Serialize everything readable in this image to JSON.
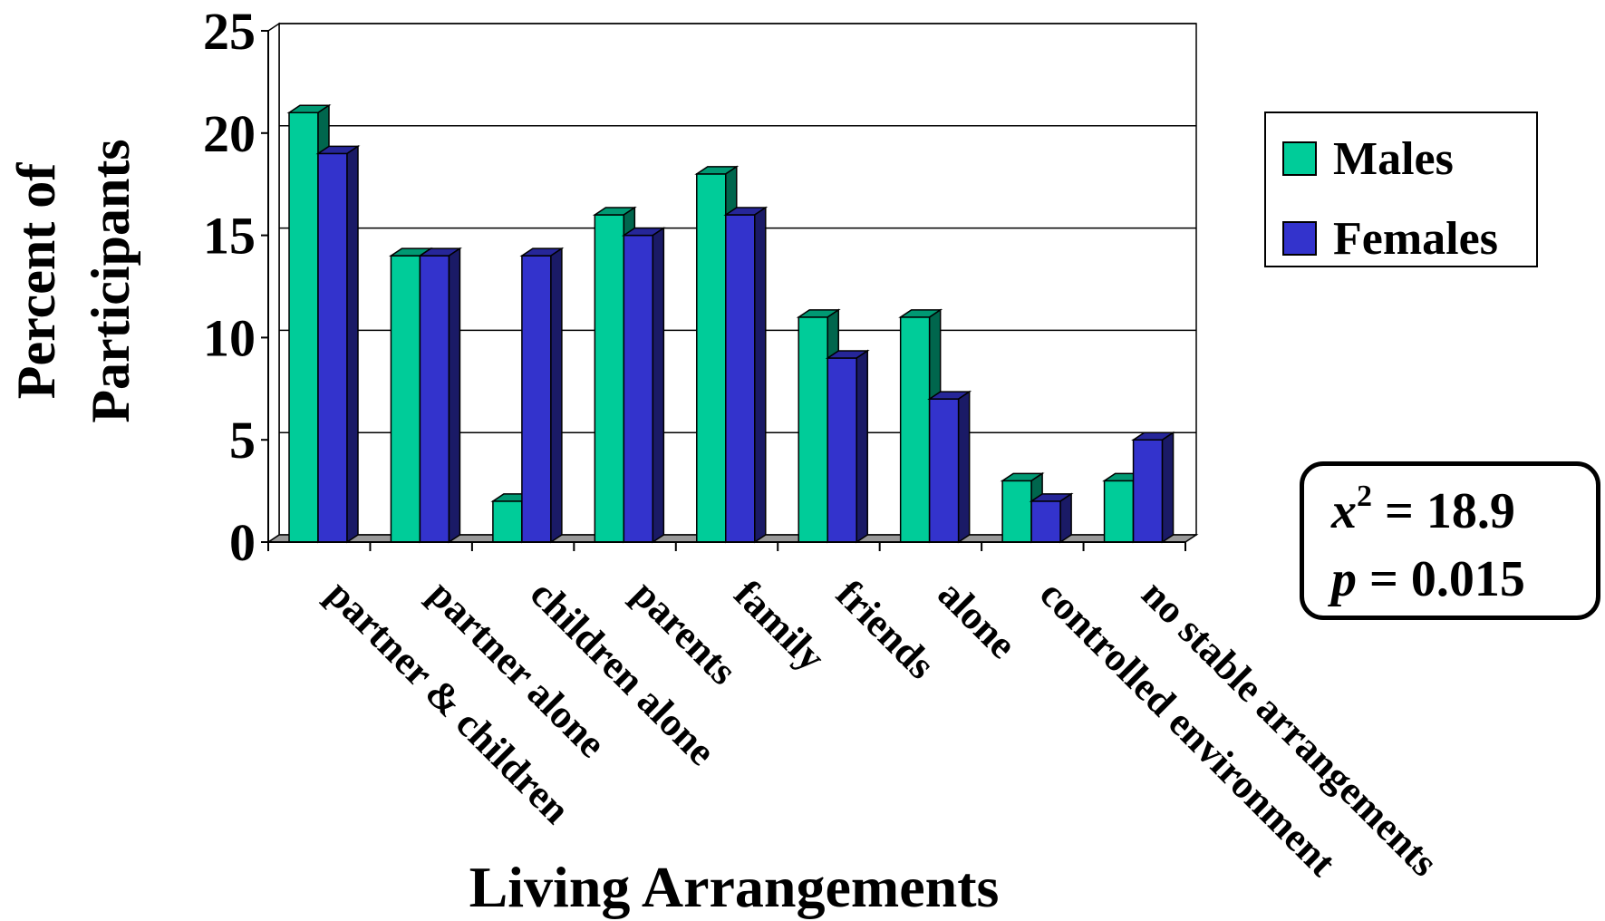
{
  "chart_data": {
    "type": "bar",
    "title": "",
    "xlabel": "Living Arrangements",
    "ylabel": "Percent of Participants",
    "ylabel_lines": [
      "Percent of",
      "Participants"
    ],
    "ylim": [
      0,
      25
    ],
    "yticks": [
      0,
      5,
      10,
      15,
      20,
      25
    ],
    "grid": true,
    "legend_position": "right",
    "categories": [
      "partner & children",
      "partner alone",
      "children alone",
      "parents",
      "family",
      "friends",
      "alone",
      "controlled environment",
      "no stable arrangements"
    ],
    "series": [
      {
        "name": "Males",
        "color": "#00cc99",
        "values": [
          21,
          14,
          2,
          16,
          18,
          11,
          11,
          3,
          3
        ]
      },
      {
        "name": "Females",
        "color": "#3333cc",
        "values": [
          19,
          14,
          14,
          15,
          16,
          9,
          7,
          2,
          5
        ]
      }
    ]
  },
  "stats": {
    "chi_symbol": "x",
    "chi_exponent": "2",
    "chi_text": " = 18.9",
    "p_symbol": "p",
    "p_text": " = 0.015"
  }
}
